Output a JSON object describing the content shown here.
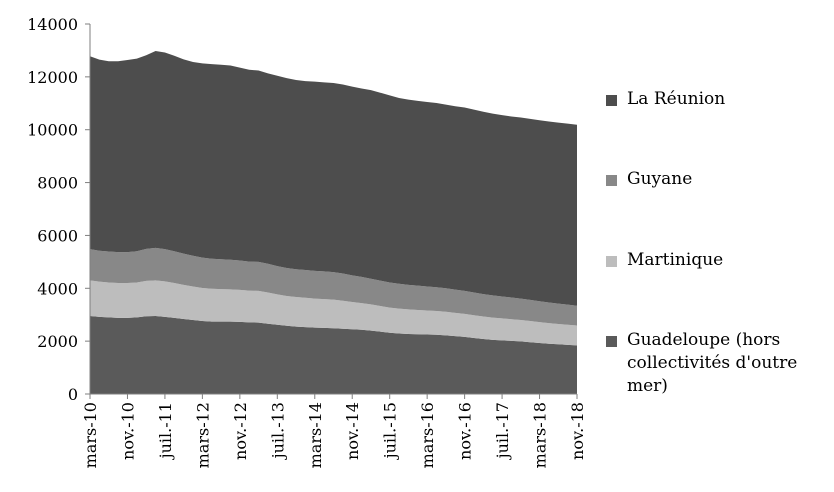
{
  "chart_data": {
    "type": "area",
    "stacked": true,
    "title": "",
    "xlabel": "",
    "ylabel": "",
    "ylim": [
      0,
      14000
    ],
    "yticks": [
      0,
      2000,
      4000,
      6000,
      8000,
      10000,
      12000,
      14000
    ],
    "ytick_labels": [
      "0",
      "2000",
      "4000",
      "6000",
      "8000",
      "10000",
      "12000",
      "14000"
    ],
    "grid": false,
    "legend_position": "right",
    "x_tick_labels": [
      "mars-10",
      "nov.-10",
      "juil.-11",
      "mars-12",
      "nov.-12",
      "juil.-13",
      "mars-14",
      "nov.-14",
      "juil.-15",
      "mars-16",
      "nov.-16",
      "juil.-17",
      "mars-18",
      "nov.-18"
    ],
    "x_tick_every": 4,
    "x": [
      "mars-10",
      "mai-10",
      "juil.-10",
      "sept.-10",
      "nov.-10",
      "janv.-11",
      "mars-11",
      "mai-11",
      "juil.-11",
      "sept.-11",
      "nov.-11",
      "janv.-12",
      "mars-12",
      "mai-12",
      "juil.-12",
      "sept.-12",
      "nov.-12",
      "janv.-13",
      "mars-13",
      "mai-13",
      "juil.-13",
      "sept.-13",
      "nov.-13",
      "janv.-14",
      "mars-14",
      "mai-14",
      "juil.-14",
      "sept.-14",
      "nov.-14",
      "janv.-15",
      "mars-15",
      "mai-15",
      "juil.-15",
      "sept.-15",
      "nov.-15",
      "janv.-16",
      "mars-16",
      "mai-16",
      "juil.-16",
      "sept.-16",
      "nov.-16",
      "janv.-17",
      "mars-17",
      "mai-17",
      "juil.-17",
      "sept.-17",
      "nov.-17",
      "janv.-18",
      "mars-18",
      "mai-18",
      "juil.-18",
      "sept.-18",
      "nov.-18"
    ],
    "series": [
      {
        "name": "Guadeloupe (hors collectivités d'outre mer)",
        "color": "#5a5a5a",
        "values": [
          2950,
          2920,
          2900,
          2880,
          2880,
          2900,
          2940,
          2950,
          2920,
          2880,
          2840,
          2800,
          2760,
          2740,
          2740,
          2740,
          2730,
          2710,
          2700,
          2660,
          2620,
          2580,
          2550,
          2530,
          2510,
          2500,
          2490,
          2470,
          2450,
          2430,
          2400,
          2360,
          2320,
          2290,
          2270,
          2260,
          2250,
          2240,
          2220,
          2190,
          2160,
          2120,
          2080,
          2050,
          2030,
          2010,
          1990,
          1960,
          1930,
          1900,
          1880,
          1860,
          1840
        ]
      },
      {
        "name": "Martinique",
        "color": "#bdbdbd",
        "values": [
          1350,
          1330,
          1320,
          1320,
          1320,
          1320,
          1340,
          1350,
          1340,
          1320,
          1290,
          1270,
          1250,
          1240,
          1230,
          1220,
          1210,
          1200,
          1200,
          1180,
          1150,
          1130,
          1120,
          1110,
          1100,
          1090,
          1080,
          1060,
          1030,
          1010,
          990,
          970,
          950,
          940,
          930,
          920,
          910,
          900,
          890,
          880,
          870,
          860,
          850,
          840,
          830,
          820,
          810,
          800,
          790,
          780,
          770,
          760,
          750
        ]
      },
      {
        "name": "Guyane",
        "color": "#888888",
        "values": [
          1180,
          1170,
          1170,
          1170,
          1170,
          1180,
          1210,
          1230,
          1220,
          1200,
          1180,
          1160,
          1150,
          1140,
          1130,
          1120,
          1110,
          1100,
          1100,
          1090,
          1070,
          1060,
          1050,
          1050,
          1050,
          1050,
          1040,
          1030,
          1010,
          990,
          970,
          960,
          950,
          940,
          930,
          920,
          910,
          900,
          890,
          880,
          870,
          860,
          850,
          840,
          830,
          820,
          810,
          800,
          790,
          780,
          770,
          760,
          750
        ]
      },
      {
        "name": "La Réunion",
        "color": "#4d4d4d",
        "values": [
          7300,
          7230,
          7200,
          7220,
          7270,
          7290,
          7330,
          7450,
          7440,
          7400,
          7350,
          7330,
          7350,
          7360,
          7360,
          7350,
          7300,
          7260,
          7240,
          7200,
          7200,
          7180,
          7160,
          7150,
          7160,
          7150,
          7160,
          7150,
          7140,
          7130,
          7140,
          7110,
          7080,
          7030,
          7010,
          6990,
          6980,
          6970,
          6950,
          6940,
          6940,
          6920,
          6900,
          6880,
          6860,
          6850,
          6850,
          6850,
          6850,
          6850,
          6850,
          6850,
          6850
        ]
      }
    ]
  }
}
